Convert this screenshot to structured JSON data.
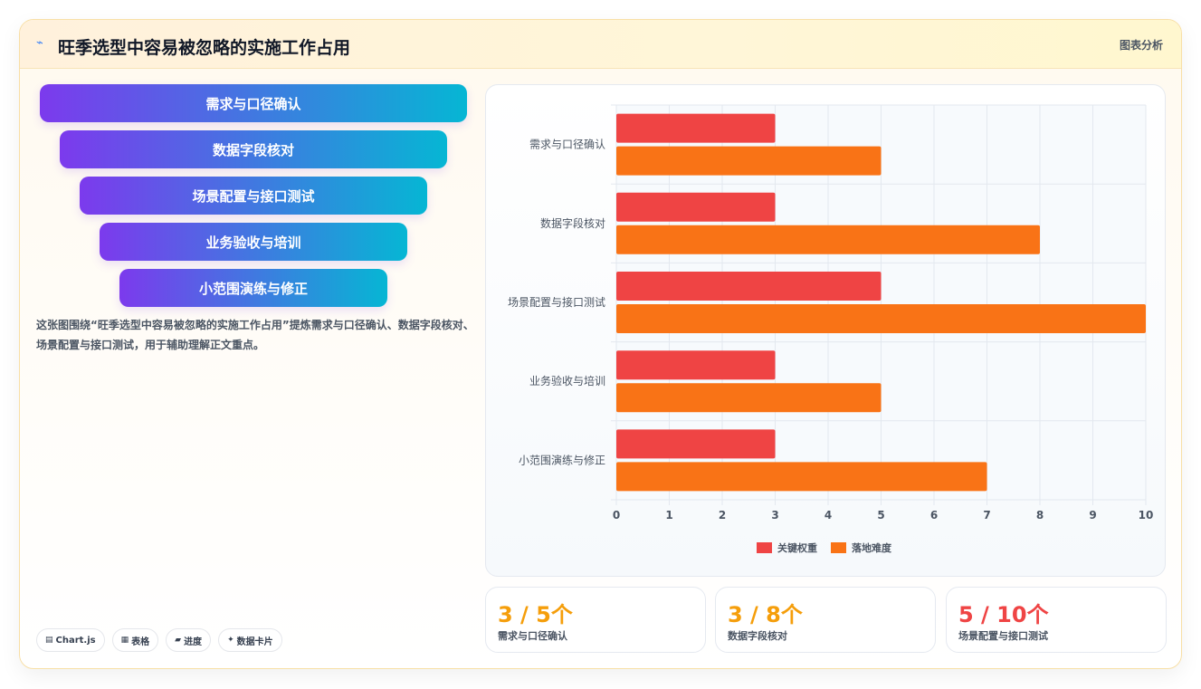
{
  "header": {
    "logo_icon": "lightning-icon",
    "title": "旺季选型中容易被忽略的实施工作占用",
    "tag": "图表分析"
  },
  "funnel": {
    "steps": [
      "需求与口径确认",
      "数据字段核对",
      "场景配置与接口测试",
      "业务验收与培训",
      "小范围演练与修正"
    ]
  },
  "description": "这张图围绕“旺季选型中容易被忽略的实施工作占用”提炼需求与口径确认、数据字段核对、场景配置与接口测试，用于辅助理解正文重点。",
  "pills": [
    {
      "icon": "chart-icon",
      "glyph": "▤",
      "label": "Chart.js"
    },
    {
      "icon": "table-icon",
      "glyph": "▦",
      "label": "表格"
    },
    {
      "icon": "folder-icon",
      "glyph": "▰",
      "label": "进度"
    },
    {
      "icon": "sparkle-icon",
      "glyph": "✦",
      "label": "数据卡片"
    }
  ],
  "chart_data": {
    "type": "bar",
    "orientation": "horizontal",
    "categories": [
      "需求与口径确认",
      "数据字段核对",
      "场景配置与接口测试",
      "业务验收与培训",
      "小范围演练与修正"
    ],
    "series": [
      {
        "name": "关键权重",
        "values": [
          3,
          3,
          5,
          3,
          3
        ],
        "color": "#ef4444"
      },
      {
        "name": "落地难度",
        "values": [
          5,
          8,
          10,
          5,
          7
        ],
        "color": "#f97316"
      }
    ],
    "xlim": [
      0,
      10
    ],
    "xticks": [
      0,
      1,
      2,
      3,
      4,
      5,
      6,
      7,
      8,
      9,
      10
    ],
    "grid": true,
    "legend": "bottom"
  },
  "stats": [
    {
      "value": "3 / 5个",
      "label": "需求与口径确认",
      "color": "#f59e0b"
    },
    {
      "value": "3 / 8个",
      "label": "数据字段核对",
      "color": "#f59e0b"
    },
    {
      "value": "5 / 10个",
      "label": "场景配置与接口测试",
      "color": "#ef4444"
    }
  ]
}
